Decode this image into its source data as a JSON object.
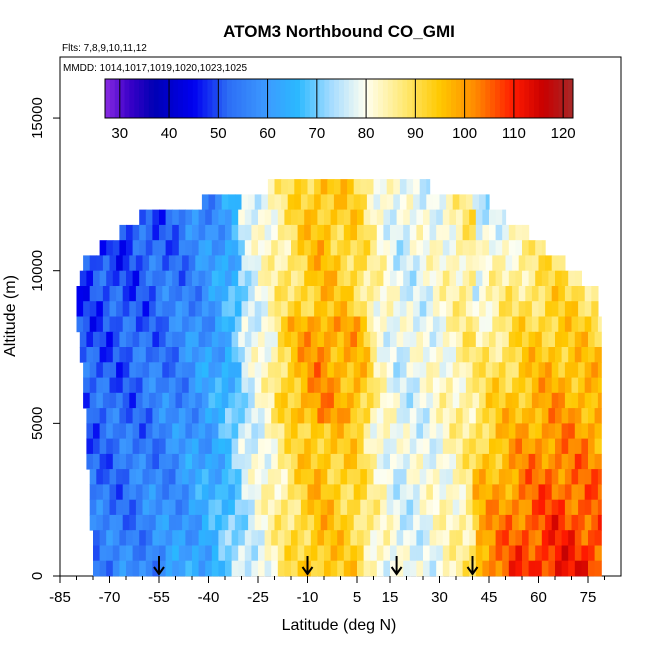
{
  "chart_data": {
    "type": "heatmap",
    "title": "ATOM3 Northbound CO_GMI",
    "info_lines": [
      "Flts: 7,8,9,10,11,12",
      "MMDD: 1014,1017,1019,1020,1023,1025"
    ],
    "xlabel": "Latitude (deg N)",
    "ylabel": "Altitude (m)",
    "xlim": [
      -85,
      85
    ],
    "ylim": [
      0,
      17000
    ],
    "x_ticks": [
      -85,
      -70,
      -55,
      -40,
      -25,
      -10,
      5,
      15,
      30,
      45,
      60,
      75
    ],
    "x_tick_labels": [
      "-85",
      "-70",
      "-55",
      "-40",
      "-25",
      "-10",
      "5",
      "15",
      "30",
      "45",
      "60",
      "75"
    ],
    "y_ticks": [
      0,
      5000,
      10000,
      15000
    ],
    "y_tick_labels": [
      "0",
      "5000",
      "10000",
      "15000"
    ],
    "colorbar": {
      "min": 27,
      "max": 122,
      "ticks": [
        30,
        40,
        50,
        60,
        70,
        80,
        90,
        100,
        110,
        120
      ],
      "tick_labels": [
        "30",
        "40",
        "50",
        "60",
        "70",
        "80",
        "90",
        "100",
        "110",
        "120"
      ],
      "colors": [
        {
          "v": 27,
          "c": "#8a2be2"
        },
        {
          "v": 32,
          "c": "#3a00c8"
        },
        {
          "v": 37,
          "c": "#0000b4"
        },
        {
          "v": 45,
          "c": "#0000f0"
        },
        {
          "v": 52,
          "c": "#2d6ef5"
        },
        {
          "v": 60,
          "c": "#3c9bff"
        },
        {
          "v": 66,
          "c": "#2ab8ff"
        },
        {
          "v": 73,
          "c": "#a6dcff"
        },
        {
          "v": 80,
          "c": "#fffff0"
        },
        {
          "v": 88,
          "c": "#ffe870"
        },
        {
          "v": 95,
          "c": "#ffc800"
        },
        {
          "v": 102,
          "c": "#ff8c00"
        },
        {
          "v": 110,
          "c": "#ff1a00"
        },
        {
          "v": 116,
          "c": "#c80000"
        },
        {
          "v": 122,
          "c": "#a82828"
        }
      ]
    },
    "arrow_latitudes": [
      -55,
      -10,
      17,
      40
    ],
    "profile_rows": [
      {
        "alt_top": 13000,
        "lat_min": -22,
        "lat_max": 27
      },
      {
        "alt_top": 12500,
        "lat_min": -42,
        "lat_max": 45
      },
      {
        "alt_top": 12000,
        "lat_min": -61,
        "lat_max": 50
      },
      {
        "alt_top": 11500,
        "lat_min": -67,
        "lat_max": 57
      },
      {
        "alt_top": 11000,
        "lat_min": -73,
        "lat_max": 62
      },
      {
        "alt_top": 10500,
        "lat_min": -78,
        "lat_max": 68
      },
      {
        "alt_top": 10000,
        "lat_min": -79,
        "lat_max": 73
      },
      {
        "alt_top": 9500,
        "lat_min": -80,
        "lat_max": 78
      },
      {
        "alt_top": 9000,
        "lat_min": -80,
        "lat_max": 78
      },
      {
        "alt_top": 8500,
        "lat_min": -80,
        "lat_max": 79
      },
      {
        "alt_top": 8000,
        "lat_min": -79,
        "lat_max": 79
      },
      {
        "alt_top": 7500,
        "lat_min": -79,
        "lat_max": 79
      },
      {
        "alt_top": 7000,
        "lat_min": -78,
        "lat_max": 79
      },
      {
        "alt_top": 6500,
        "lat_min": -78,
        "lat_max": 79
      },
      {
        "alt_top": 6000,
        "lat_min": -78,
        "lat_max": 79
      },
      {
        "alt_top": 5500,
        "lat_min": -77,
        "lat_max": 79
      },
      {
        "alt_top": 5000,
        "lat_min": -77,
        "lat_max": 79
      },
      {
        "alt_top": 4500,
        "lat_min": -77,
        "lat_max": 79
      },
      {
        "alt_top": 4000,
        "lat_min": -77,
        "lat_max": 79
      },
      {
        "alt_top": 3500,
        "lat_min": -76,
        "lat_max": 79
      },
      {
        "alt_top": 3000,
        "lat_min": -76,
        "lat_max": 79
      },
      {
        "alt_top": 2500,
        "lat_min": -76,
        "lat_max": 79
      },
      {
        "alt_top": 2000,
        "lat_min": -76,
        "lat_max": 79
      },
      {
        "alt_top": 1500,
        "lat_min": -75,
        "lat_max": 79
      },
      {
        "alt_top": 1000,
        "lat_min": -75,
        "lat_max": 79
      },
      {
        "alt_top": 500,
        "lat_min": -75,
        "lat_max": 79
      }
    ],
    "lat_profile": [
      {
        "lat": -80,
        "v": 55
      },
      {
        "lat": -65,
        "v": 56
      },
      {
        "lat": -50,
        "v": 60
      },
      {
        "lat": -38,
        "v": 66
      },
      {
        "lat": -28,
        "v": 76
      },
      {
        "lat": -18,
        "v": 86
      },
      {
        "lat": -12,
        "v": 92
      },
      {
        "lat": -6,
        "v": 96
      },
      {
        "lat": 0,
        "v": 93
      },
      {
        "lat": 5,
        "v": 92
      },
      {
        "lat": 10,
        "v": 84
      },
      {
        "lat": 18,
        "v": 77
      },
      {
        "lat": 26,
        "v": 79
      },
      {
        "lat": 34,
        "v": 83
      },
      {
        "lat": 44,
        "v": 90
      },
      {
        "lat": 55,
        "v": 96
      },
      {
        "lat": 65,
        "v": 99
      },
      {
        "lat": 79,
        "v": 97
      }
    ]
  }
}
